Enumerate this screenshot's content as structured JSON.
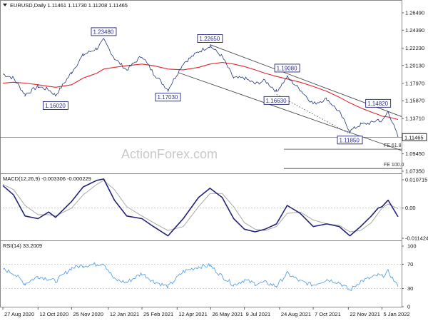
{
  "watermark": "ActionForex.com",
  "colors": {
    "price": "#23357a",
    "ma": "#e0262c",
    "macd": "#23237a",
    "signal": "#a9a9a9",
    "rsi": "#5aa3e8",
    "channel": "#4a4a4a",
    "label_border": "#23237a",
    "label_text": "#2a2e8a",
    "panel_border": "#888888",
    "ref_line": "#999999"
  },
  "price_panel": {
    "title": "EURUSD,Daily  1.11461  1.11730  1.11208  1.11465",
    "current_price_label": "1.11465",
    "price_ticks": [
      "1.26490",
      "1.24390",
      "1.22230",
      "1.20130",
      "1.17970",
      "1.15870",
      "1.13710",
      "1.11465",
      "1.09450",
      "1.07350"
    ],
    "annotations": [
      {
        "text": "1.16020",
        "date": "2020-11-04",
        "price": 1.1602
      },
      {
        "text": "1.23480",
        "date": "2021-01-06",
        "price": 1.2348
      },
      {
        "text": "1.17030",
        "date": "2021-03-31",
        "price": 1.1703
      },
      {
        "text": "1.22650",
        "date": "2021-05-25",
        "price": 1.2265
      },
      {
        "text": "1.16630",
        "date": "2021-08-20",
        "price": 1.1663
      },
      {
        "text": "1.19080",
        "date": "2021-09-03",
        "price": 1.1908
      },
      {
        "text": "1.11850",
        "date": "2021-11-24",
        "price": 1.1185
      },
      {
        "text": "1.14820",
        "date": "2021-12-31",
        "price": 1.1482
      }
    ],
    "fe_levels": [
      {
        "text": "FE 61.8",
        "price": 1.1001
      },
      {
        "text": "FE 100.0",
        "price": 1.0768
      }
    ]
  },
  "macd_panel": {
    "title": "MACD(12,26,9) -0.003306 -0.000229",
    "ticks": [
      "0.010715",
      "0.00",
      "-0.011424"
    ]
  },
  "rsi_panel": {
    "title": "RSI(14) 33.2009",
    "ticks": [
      "100",
      "70",
      "30",
      "0"
    ]
  },
  "x_ticks": [
    "27 Aug 2020",
    "12 Oct 2020",
    "25 Nov 2020",
    "12 Jan 2021",
    "25 Feb 2021",
    "12 Apr 2021",
    "26 May 2021",
    "9 Jul 2021",
    "24 Aug 2021",
    "7 Oct 2021",
    "22 Nov 2021",
    "5 Jan 2022"
  ],
  "chart_data": [
    {
      "type": "line",
      "title": "EURUSD,Daily",
      "x": [
        "2020-08-27",
        "2020-09-10",
        "2020-09-25",
        "2020-10-12",
        "2020-10-26",
        "2020-11-04",
        "2020-11-25",
        "2020-12-10",
        "2020-12-28",
        "2021-01-06",
        "2021-01-20",
        "2021-02-05",
        "2021-02-25",
        "2021-03-12",
        "2021-03-31",
        "2021-04-20",
        "2021-05-10",
        "2021-05-25",
        "2021-06-10",
        "2021-06-25",
        "2021-07-09",
        "2021-07-23",
        "2021-08-05",
        "2021-08-20",
        "2021-09-03",
        "2021-09-20",
        "2021-10-07",
        "2021-10-25",
        "2021-11-10",
        "2021-11-24",
        "2021-12-08",
        "2021-12-22",
        "2021-12-31",
        "2022-01-05",
        "2022-01-13",
        "2022-01-26"
      ],
      "series": [
        {
          "values": [
            1.191,
            1.186,
            1.166,
            1.176,
            1.172,
            1.165,
            1.193,
            1.214,
            1.222,
            1.232,
            1.21,
            1.196,
            1.213,
            1.192,
            1.172,
            1.204,
            1.218,
            1.225,
            1.212,
            1.186,
            1.186,
            1.179,
            1.183,
            1.17,
            1.187,
            1.172,
            1.155,
            1.161,
            1.145,
            1.122,
            1.13,
            1.132,
            1.136,
            1.133,
            1.146,
            1.1147
          ]
        },
        {
          "values": [
            1.18,
            1.181,
            1.18,
            1.178,
            1.176,
            1.175,
            1.178,
            1.186,
            1.192,
            1.197,
            1.199,
            1.201,
            1.203,
            1.201,
            1.197,
            1.196,
            1.199,
            1.203,
            1.205,
            1.203,
            1.2,
            1.196,
            1.192,
            1.188,
            1.185,
            1.181,
            1.176,
            1.17,
            1.163,
            1.156,
            1.15,
            1.145,
            1.142,
            1.14,
            1.139,
            1.136
          ]
        }
      ]
    },
    {
      "type": "line",
      "title": "MACD(12,26,9) -0.003306 -0.000229",
      "x": [
        "2020-08-27",
        "2020-09-10",
        "2020-09-25",
        "2020-10-12",
        "2020-10-26",
        "2020-11-04",
        "2020-11-25",
        "2020-12-10",
        "2020-12-28",
        "2021-01-06",
        "2021-01-20",
        "2021-02-05",
        "2021-02-25",
        "2021-03-12",
        "2021-03-31",
        "2021-04-20",
        "2021-05-10",
        "2021-05-25",
        "2021-06-10",
        "2021-06-25",
        "2021-07-09",
        "2021-07-23",
        "2021-08-05",
        "2021-08-20",
        "2021-09-03",
        "2021-09-20",
        "2021-10-07",
        "2021-10-25",
        "2021-11-10",
        "2021-11-24",
        "2021-12-08",
        "2021-12-22",
        "2021-12-31",
        "2022-01-05",
        "2022-01-13",
        "2022-01-26"
      ],
      "series": [
        {
          "values": [
            0.0085,
            0.005,
            -0.003,
            -0.004,
            -0.0015,
            -0.0035,
            0.0025,
            0.008,
            0.0105,
            0.011,
            0.003,
            -0.003,
            -0.004,
            -0.007,
            -0.0105,
            -0.004,
            0.004,
            0.0075,
            0.004,
            -0.004,
            -0.008,
            -0.009,
            -0.008,
            -0.006,
            0.001,
            -0.002,
            -0.007,
            -0.006,
            -0.007,
            -0.0105,
            -0.007,
            -0.003,
            0.0,
            0.0005,
            0.003,
            -0.0033
          ]
        },
        {
          "values": [
            0.009,
            0.007,
            0.001,
            -0.0025,
            -0.0025,
            -0.003,
            0.0,
            0.005,
            0.009,
            0.0105,
            0.007,
            0.0005,
            -0.003,
            -0.0055,
            -0.0085,
            -0.007,
            0.0005,
            0.0055,
            0.0055,
            0.0005,
            -0.0055,
            -0.008,
            -0.0085,
            -0.007,
            -0.002,
            -0.0015,
            -0.0045,
            -0.006,
            -0.0065,
            -0.009,
            -0.0085,
            -0.0055,
            -0.002,
            0.0,
            0.0015,
            -0.0002
          ]
        }
      ],
      "ylim": [
        -0.011424,
        0.010715
      ]
    },
    {
      "type": "line",
      "title": "RSI(14) 33.2009",
      "x": [
        "2020-08-27",
        "2020-09-10",
        "2020-09-25",
        "2020-10-12",
        "2020-10-26",
        "2020-11-04",
        "2020-11-25",
        "2020-12-10",
        "2020-12-28",
        "2021-01-06",
        "2021-01-20",
        "2021-02-05",
        "2021-02-25",
        "2021-03-12",
        "2021-03-31",
        "2021-04-20",
        "2021-05-10",
        "2021-05-25",
        "2021-06-10",
        "2021-06-25",
        "2021-07-09",
        "2021-07-23",
        "2021-08-05",
        "2021-08-20",
        "2021-09-03",
        "2021-09-20",
        "2021-10-07",
        "2021-10-25",
        "2021-11-10",
        "2021-11-24",
        "2021-12-08",
        "2021-12-22",
        "2021-12-31",
        "2022-01-05",
        "2022-01-13",
        "2022-01-26"
      ],
      "series": [
        {
          "values": [
            62,
            55,
            38,
            50,
            46,
            42,
            64,
            68,
            70,
            72,
            45,
            40,
            55,
            42,
            33,
            58,
            66,
            68,
            50,
            36,
            44,
            38,
            40,
            34,
            55,
            42,
            36,
            45,
            40,
            27,
            42,
            48,
            52,
            50,
            58,
            33
          ]
        }
      ],
      "ylim": [
        0,
        100
      ]
    }
  ]
}
